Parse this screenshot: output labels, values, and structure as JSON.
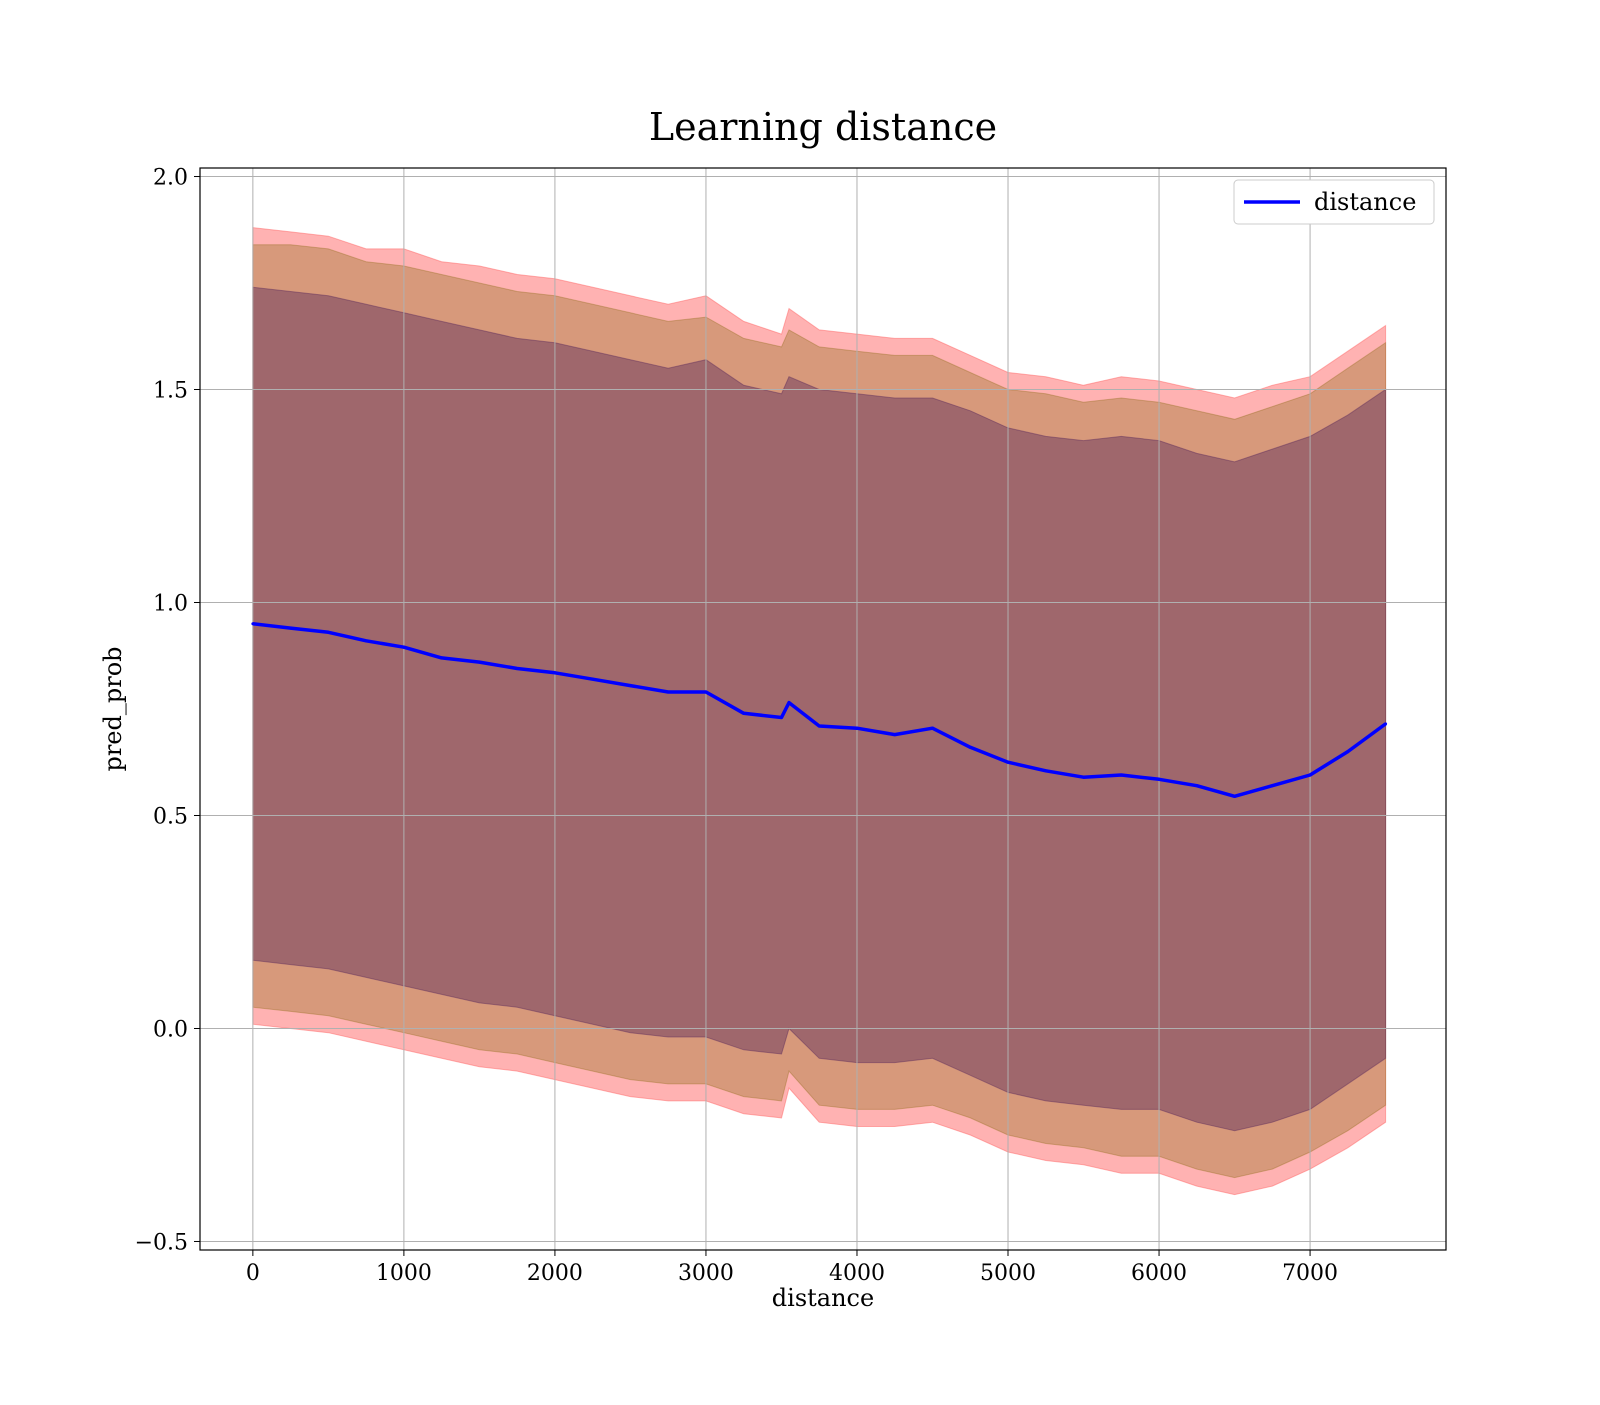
{
  "chart_data": {
    "type": "line",
    "title": "Learning distance",
    "xlabel": "distance",
    "ylabel": "pred_prob",
    "xlim": [
      -350,
      7900
    ],
    "ylim": [
      -0.52,
      2.02
    ],
    "xticks": [
      0,
      1000,
      2000,
      3000,
      4000,
      5000,
      6000,
      7000
    ],
    "xtick_labels": [
      "0",
      "1000",
      "2000",
      "3000",
      "4000",
      "5000",
      "6000",
      "7000"
    ],
    "yticks": [
      -0.5,
      0.0,
      0.5,
      1.0,
      1.5,
      2.0
    ],
    "ytick_labels": [
      "−0.5",
      "0.0",
      "0.5",
      "1.0",
      "1.5",
      "2.0"
    ],
    "grid": true,
    "legend_position": "top-right",
    "x": [
      0,
      250,
      500,
      750,
      1000,
      1250,
      1500,
      1750,
      2000,
      2250,
      2500,
      2750,
      3000,
      3250,
      3500,
      3550,
      3750,
      4000,
      4250,
      4500,
      4750,
      5000,
      5250,
      5500,
      5750,
      6000,
      6250,
      6500,
      6750,
      7000,
      7250,
      7500
    ],
    "series": [
      {
        "name": "distance",
        "color": "#0000ff",
        "values": [
          0.95,
          0.94,
          0.93,
          0.91,
          0.895,
          0.87,
          0.86,
          0.845,
          0.835,
          0.82,
          0.805,
          0.79,
          0.79,
          0.74,
          0.73,
          0.765,
          0.71,
          0.705,
          0.69,
          0.705,
          0.66,
          0.625,
          0.605,
          0.59,
          0.595,
          0.585,
          0.57,
          0.545,
          0.57,
          0.595,
          0.65,
          0.715
        ]
      }
    ],
    "bands": [
      {
        "color": "#ff6666",
        "opacity": 0.5,
        "upper": [
          1.88,
          1.87,
          1.86,
          1.83,
          1.83,
          1.8,
          1.79,
          1.77,
          1.76,
          1.74,
          1.72,
          1.7,
          1.72,
          1.66,
          1.63,
          1.69,
          1.64,
          1.63,
          1.62,
          1.62,
          1.58,
          1.54,
          1.53,
          1.51,
          1.53,
          1.52,
          1.5,
          1.48,
          1.51,
          1.53,
          1.59,
          1.65
        ],
        "lower": [
          0.01,
          0.0,
          -0.01,
          -0.03,
          -0.05,
          -0.07,
          -0.09,
          -0.1,
          -0.12,
          -0.14,
          -0.16,
          -0.17,
          -0.17,
          -0.2,
          -0.21,
          -0.14,
          -0.22,
          -0.23,
          -0.23,
          -0.22,
          -0.25,
          -0.29,
          -0.31,
          -0.32,
          -0.34,
          -0.34,
          -0.37,
          -0.39,
          -0.37,
          -0.33,
          -0.28,
          -0.22
        ]
      },
      {
        "color": "#8b6914",
        "opacity": 0.35,
        "upper": [
          1.84,
          1.84,
          1.83,
          1.8,
          1.79,
          1.77,
          1.75,
          1.73,
          1.72,
          1.7,
          1.68,
          1.66,
          1.67,
          1.62,
          1.6,
          1.64,
          1.6,
          1.59,
          1.58,
          1.58,
          1.54,
          1.5,
          1.49,
          1.47,
          1.48,
          1.47,
          1.45,
          1.43,
          1.46,
          1.49,
          1.55,
          1.61
        ],
        "lower": [
          0.05,
          0.04,
          0.03,
          0.01,
          -0.01,
          -0.03,
          -0.05,
          -0.06,
          -0.08,
          -0.1,
          -0.12,
          -0.13,
          -0.13,
          -0.16,
          -0.17,
          -0.1,
          -0.18,
          -0.19,
          -0.19,
          -0.18,
          -0.21,
          -0.25,
          -0.27,
          -0.28,
          -0.3,
          -0.3,
          -0.33,
          -0.35,
          -0.33,
          -0.29,
          -0.24,
          -0.18
        ]
      },
      {
        "color": "#5a2a5a",
        "opacity": 0.45,
        "upper": [
          1.74,
          1.73,
          1.72,
          1.7,
          1.68,
          1.66,
          1.64,
          1.62,
          1.61,
          1.59,
          1.57,
          1.55,
          1.57,
          1.51,
          1.49,
          1.53,
          1.5,
          1.49,
          1.48,
          1.48,
          1.45,
          1.41,
          1.39,
          1.38,
          1.39,
          1.38,
          1.35,
          1.33,
          1.36,
          1.39,
          1.44,
          1.5
        ],
        "lower": [
          0.16,
          0.15,
          0.14,
          0.12,
          0.1,
          0.08,
          0.06,
          0.05,
          0.03,
          0.01,
          -0.01,
          -0.02,
          -0.02,
          -0.05,
          -0.06,
          0.0,
          -0.07,
          -0.08,
          -0.08,
          -0.07,
          -0.11,
          -0.15,
          -0.17,
          -0.18,
          -0.19,
          -0.19,
          -0.22,
          -0.24,
          -0.22,
          -0.19,
          -0.13,
          -0.07
        ]
      }
    ]
  }
}
